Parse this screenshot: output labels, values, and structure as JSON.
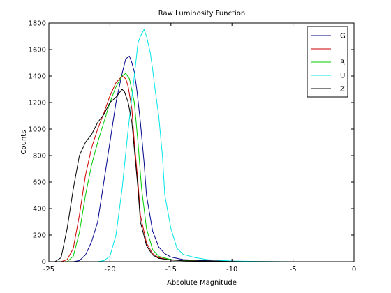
{
  "chart_data": {
    "type": "line",
    "title": "Raw Luminosity Function",
    "xlabel": "Absolute Magnitude",
    "ylabel": "Counts",
    "xlim": [
      -25,
      0
    ],
    "ylim": [
      0,
      1800
    ],
    "xticks": [
      -25,
      -20,
      -15,
      -10,
      -5,
      0
    ],
    "xtick_labels": [
      "-25",
      "-20",
      "-15",
      "-10",
      "-5",
      "0"
    ],
    "yticks": [
      0,
      200,
      400,
      600,
      800,
      1000,
      1200,
      1400,
      1600,
      1800
    ],
    "ytick_labels": [
      "0",
      "200",
      "400",
      "600",
      "800",
      "1000",
      "1200",
      "1400",
      "1600",
      "1800"
    ],
    "grid": false,
    "legend_position": "top-right",
    "series": [
      {
        "name": "G",
        "color": "#00008b",
        "x": [
          -23.0,
          -22.5,
          -22.0,
          -21.5,
          -21.0,
          -20.5,
          -20.0,
          -19.5,
          -19.0,
          -18.7,
          -18.4,
          -18.2,
          -18.0,
          -17.8,
          -17.5,
          -17.2,
          -17.0,
          -16.5,
          -16.0,
          -15.5,
          -15.0,
          -14.0,
          -12.0,
          -10.0,
          -8.0
        ],
        "y": [
          0,
          8,
          50,
          150,
          300,
          600,
          900,
          1200,
          1420,
          1530,
          1550,
          1500,
          1430,
          1300,
          1050,
          750,
          500,
          230,
          110,
          60,
          35,
          15,
          8,
          3,
          0
        ]
      },
      {
        "name": "I",
        "color": "#cc0000",
        "x": [
          -24.0,
          -23.5,
          -23.0,
          -22.5,
          -22.0,
          -21.5,
          -21.0,
          -20.5,
          -20.0,
          -19.5,
          -19.0,
          -18.7,
          -18.5,
          -18.2,
          -18.0,
          -17.7,
          -17.5,
          -17.0,
          -16.5,
          -16.0,
          -15.0,
          -14.0,
          -12.0,
          -10.0,
          -6.0
        ],
        "y": [
          0,
          15,
          100,
          350,
          650,
          860,
          1000,
          1120,
          1250,
          1350,
          1400,
          1380,
          1320,
          1150,
          900,
          600,
          350,
          140,
          60,
          30,
          12,
          8,
          5,
          3,
          0
        ]
      },
      {
        "name": "R",
        "color": "#00cc00",
        "x": [
          -23.5,
          -23.0,
          -22.5,
          -22.0,
          -21.5,
          -21.0,
          -20.5,
          -20.0,
          -19.5,
          -19.0,
          -18.7,
          -18.4,
          -18.0,
          -17.7,
          -17.4,
          -17.0,
          -16.5,
          -16.0,
          -15.0,
          -14.0,
          -12.0,
          -10.0,
          -7.0
        ],
        "y": [
          0,
          40,
          220,
          500,
          730,
          900,
          1050,
          1200,
          1320,
          1400,
          1420,
          1380,
          1200,
          900,
          550,
          250,
          90,
          40,
          15,
          8,
          4,
          2,
          0
        ]
      },
      {
        "name": "U",
        "color": "#00e5e5",
        "x": [
          -21.0,
          -20.5,
          -20.0,
          -19.5,
          -19.0,
          -18.5,
          -18.0,
          -17.7,
          -17.5,
          -17.2,
          -17.0,
          -16.7,
          -16.5,
          -16.3,
          -16.0,
          -15.7,
          -15.5,
          -15.0,
          -14.5,
          -14.0,
          -13.0,
          -12.0,
          -10.0,
          -8.0,
          -5.0
        ],
        "y": [
          0,
          8,
          40,
          200,
          550,
          1000,
          1400,
          1650,
          1700,
          1750,
          1700,
          1580,
          1450,
          1300,
          1100,
          800,
          500,
          250,
          100,
          55,
          30,
          15,
          5,
          2,
          0
        ]
      },
      {
        "name": "Z",
        "color": "#000000",
        "x": [
          -24.5,
          -24.0,
          -23.5,
          -23.0,
          -22.5,
          -22.0,
          -21.5,
          -21.0,
          -20.5,
          -20.0,
          -19.5,
          -19.0,
          -18.8,
          -18.5,
          -18.2,
          -18.0,
          -17.7,
          -17.5,
          -17.0,
          -16.5,
          -16.0,
          -15.0,
          -14.0,
          -12.0,
          -9.0
        ],
        "y": [
          0,
          30,
          250,
          550,
          800,
          900,
          960,
          1050,
          1110,
          1200,
          1240,
          1300,
          1280,
          1200,
          1050,
          850,
          550,
          300,
          120,
          50,
          25,
          12,
          7,
          4,
          0
        ]
      }
    ]
  }
}
